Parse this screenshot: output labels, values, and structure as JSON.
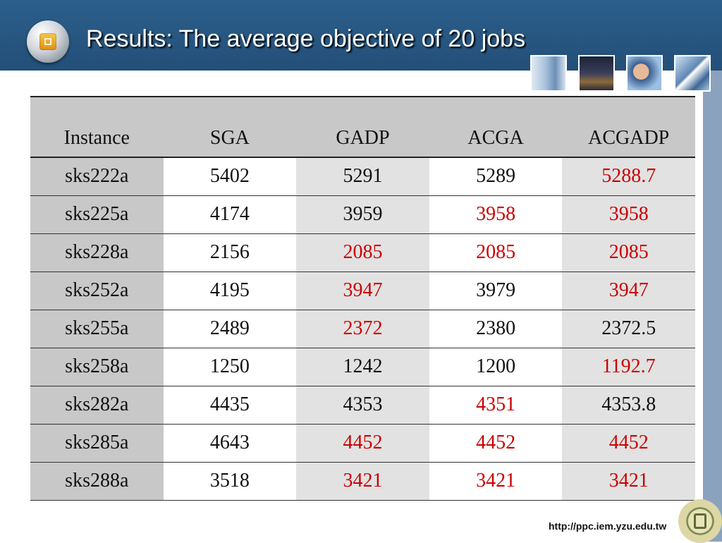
{
  "slide": {
    "title": "Results: The average objective of 20 jobs",
    "footer_url": "http://ppc.iem.yzu.edu.tw"
  },
  "colors": {
    "header_bg": "#234f78",
    "highlight_red": "#cc0000",
    "side_band": "#8aa2bd"
  },
  "table": {
    "headers": [
      "Instance",
      "SGA",
      "GADP",
      "ACGA",
      "ACGADP"
    ],
    "rows": [
      {
        "cells": [
          "sks222a",
          "5402",
          "5291",
          "5289",
          "5288.7"
        ],
        "highlight": [
          false,
          false,
          false,
          false,
          true
        ]
      },
      {
        "cells": [
          "sks225a",
          "4174",
          "3959",
          "3958",
          "3958"
        ],
        "highlight": [
          false,
          false,
          false,
          true,
          true
        ]
      },
      {
        "cells": [
          "sks228a",
          "2156",
          "2085",
          "2085",
          "2085"
        ],
        "highlight": [
          false,
          false,
          true,
          true,
          true
        ]
      },
      {
        "cells": [
          "sks252a",
          "4195",
          "3947",
          "3979",
          "3947"
        ],
        "highlight": [
          false,
          false,
          true,
          false,
          true
        ]
      },
      {
        "cells": [
          "sks255a",
          "2489",
          "2372",
          "2380",
          "2372.5"
        ],
        "highlight": [
          false,
          false,
          true,
          false,
          false
        ]
      },
      {
        "cells": [
          "sks258a",
          "1250",
          "1242",
          "1200",
          "1192.7"
        ],
        "highlight": [
          false,
          false,
          false,
          false,
          true
        ]
      },
      {
        "cells": [
          "sks282a",
          "4435",
          "4353",
          "4351",
          "4353.8"
        ],
        "highlight": [
          false,
          false,
          false,
          true,
          false
        ]
      },
      {
        "cells": [
          "sks285a",
          "4643",
          "4452",
          "4452",
          "4452"
        ],
        "highlight": [
          false,
          false,
          true,
          true,
          true
        ]
      },
      {
        "cells": [
          "sks288a",
          "3518",
          "3421",
          "3421",
          "3421"
        ],
        "highlight": [
          false,
          false,
          true,
          true,
          true
        ]
      }
    ]
  }
}
